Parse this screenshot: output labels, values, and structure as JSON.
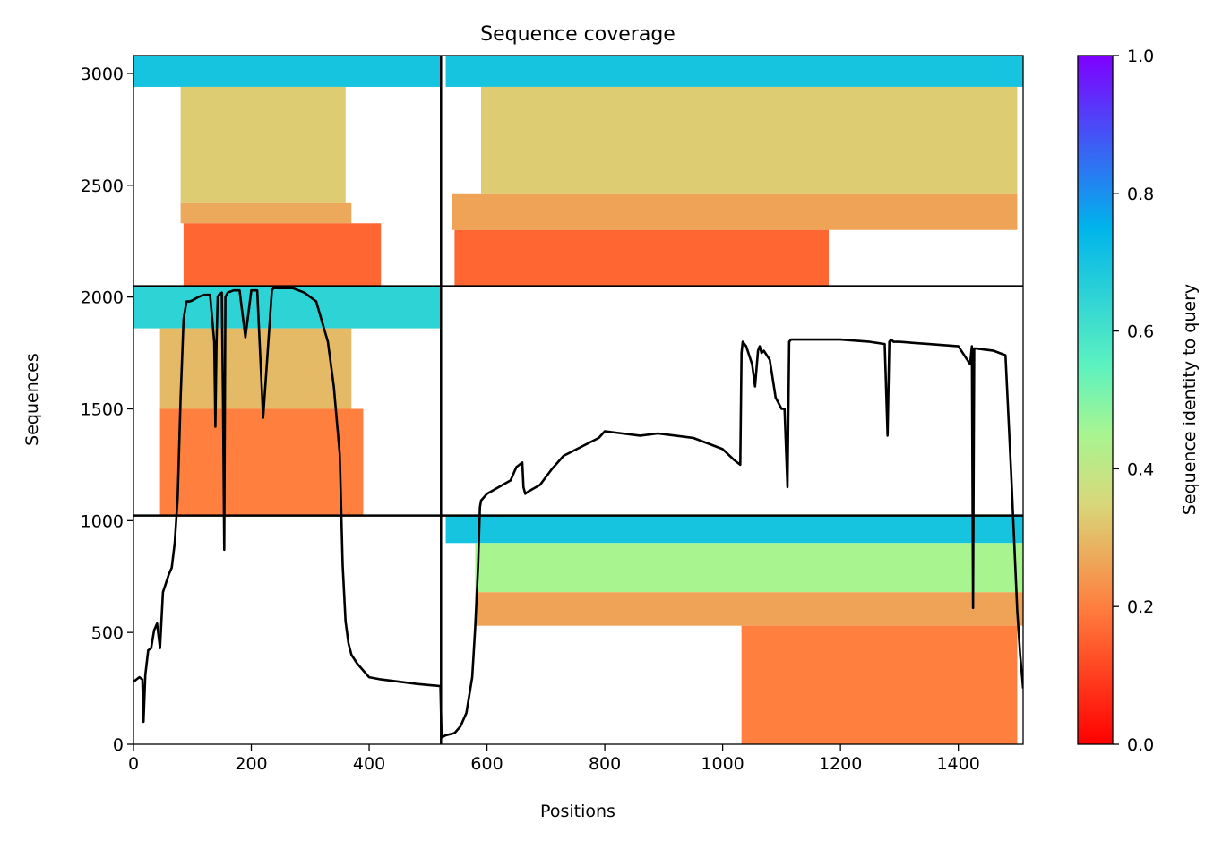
{
  "chart_data": {
    "type": "heatmap",
    "title": "Sequence coverage",
    "xlabel": "Positions",
    "ylabel": "Sequences",
    "xlim": [
      0,
      1510
    ],
    "ylim": [
      0,
      3080
    ],
    "xticks": [
      0,
      200,
      400,
      600,
      800,
      1000,
      1200,
      1400
    ],
    "xtick_labels": [
      "0",
      "200",
      "400",
      "600",
      "800",
      "1000",
      "1200",
      "1400"
    ],
    "yticks": [
      0,
      500,
      1000,
      1500,
      2000,
      2500,
      3000
    ],
    "ytick_labels": [
      "0",
      "500",
      "1000",
      "1500",
      "2000",
      "2500",
      "3000"
    ],
    "colorbar": {
      "label": "Sequence identity to query",
      "range": [
        0,
        1
      ],
      "ticks": [
        0,
        0.2,
        0.4,
        0.6,
        0.8,
        1.0
      ],
      "tick_labels": [
        "0.0",
        "0.2",
        "0.4",
        "0.6",
        "0.8",
        "1.0"
      ],
      "colormap": "rainbow_r",
      "colors": [
        "#ff0000",
        "#ff7f3f",
        "#d8d87a",
        "#5cf2c0",
        "#00b4eb",
        "#7f00ff"
      ]
    },
    "chain_boundaries": {
      "x": [
        522
      ],
      "y": [
        1023,
        2048
      ]
    },
    "coverage_blocks": [
      {
        "x": [
          0,
          522
        ],
        "y": [
          2048,
          3080
        ],
        "rows": [
          {
            "y": [
              2940,
              3080
            ],
            "x": [
              0,
              522
            ],
            "identity": 0.7
          },
          {
            "y": [
              2420,
              2940
            ],
            "x": [
              80,
              360
            ],
            "identity": 0.33
          },
          {
            "y": [
              2330,
              2420
            ],
            "x": [
              80,
              370
            ],
            "identity": 0.27
          },
          {
            "y": [
              2048,
              2330
            ],
            "x": [
              85,
              420
            ],
            "identity": 0.16
          }
        ]
      },
      {
        "x": [
          522,
          1510
        ],
        "y": [
          2048,
          3080
        ],
        "rows": [
          {
            "y": [
              2940,
              3080
            ],
            "x": [
              530,
              1510
            ],
            "identity": 0.7
          },
          {
            "y": [
              2460,
              2940
            ],
            "x": [
              590,
              1500
            ],
            "identity": 0.33
          },
          {
            "y": [
              2300,
              2460
            ],
            "x": [
              540,
              1500
            ],
            "identity": 0.26
          },
          {
            "y": [
              2048,
              2300
            ],
            "x": [
              545,
              1180
            ],
            "identity": 0.16
          }
        ]
      },
      {
        "x": [
          0,
          522
        ],
        "y": [
          1023,
          2048
        ],
        "rows": [
          {
            "y": [
              1860,
              2048
            ],
            "x": [
              0,
              522
            ],
            "identity": 0.65
          },
          {
            "y": [
              1500,
              1860
            ],
            "x": [
              45,
              370
            ],
            "identity": 0.3
          },
          {
            "y": [
              1023,
              1500
            ],
            "x": [
              45,
              390
            ],
            "identity": 0.2
          }
        ]
      },
      {
        "x": [
          522,
          1510
        ],
        "y": [
          0,
          1023
        ],
        "rows": [
          {
            "y": [
              900,
              1023
            ],
            "x": [
              530,
              1510
            ],
            "identity": 0.7
          },
          {
            "y": [
              680,
              900
            ],
            "x": [
              580,
              1510
            ],
            "identity": 0.45
          },
          {
            "y": [
              530,
              680
            ],
            "x": [
              580,
              1510
            ],
            "identity": 0.26
          },
          {
            "y": [
              0,
              530
            ],
            "x": [
              1032,
              1500
            ],
            "identity": 0.2
          }
        ]
      }
    ],
    "series": [
      {
        "type": "line",
        "color": "#000000",
        "x": [
          0,
          10,
          15,
          17,
          20,
          25,
          30,
          35,
          40,
          45,
          50,
          55,
          60,
          65,
          70,
          75,
          80,
          85,
          90,
          95,
          100,
          110,
          120,
          130,
          137,
          139,
          141,
          143,
          145,
          150,
          152,
          154,
          156,
          160,
          170,
          180,
          190,
          200,
          203,
          206,
          210,
          220,
          235,
          238,
          241,
          244,
          250,
          270,
          290,
          310,
          330,
          340,
          350,
          355,
          360,
          365,
          370,
          380,
          400,
          420,
          450,
          480,
          500,
          521,
          523,
          530,
          545,
          555,
          565,
          575,
          580,
          585,
          588,
          590,
          600,
          620,
          640,
          650,
          660,
          662,
          665,
          670,
          690,
          710,
          730,
          760,
          790,
          800,
          830,
          860,
          890,
          920,
          950,
          980,
          1000,
          1020,
          1030,
          1032,
          1034,
          1040,
          1050,
          1055,
          1060,
          1063,
          1066,
          1070,
          1075,
          1080,
          1090,
          1100,
          1105,
          1110,
          1113,
          1116,
          1120,
          1150,
          1200,
          1250,
          1275,
          1280,
          1283,
          1286,
          1290,
          1300,
          1350,
          1400,
          1420,
          1423,
          1425,
          1427,
          1430,
          1460,
          1480,
          1490,
          1500,
          1505,
          1510
        ],
        "y": [
          280,
          300,
          290,
          100,
          310,
          420,
          430,
          510,
          540,
          430,
          680,
          720,
          760,
          790,
          900,
          1100,
          1550,
          1900,
          1980,
          1980,
          1985,
          2000,
          2010,
          2010,
          1800,
          1420,
          1800,
          2000,
          2010,
          2020,
          1500,
          870,
          2000,
          2020,
          2030,
          2030,
          1820,
          2030,
          2030,
          2030,
          2030,
          1460,
          2030,
          2040,
          2040,
          2040,
          2040,
          2040,
          2020,
          1980,
          1800,
          1600,
          1300,
          800,
          550,
          450,
          400,
          360,
          300,
          290,
          280,
          270,
          265,
          260,
          30,
          40,
          50,
          80,
          140,
          300,
          520,
          800,
          1060,
          1090,
          1120,
          1150,
          1180,
          1240,
          1260,
          1150,
          1120,
          1130,
          1160,
          1230,
          1290,
          1330,
          1370,
          1400,
          1390,
          1380,
          1390,
          1380,
          1370,
          1340,
          1320,
          1270,
          1250,
          1750,
          1800,
          1780,
          1700,
          1600,
          1760,
          1780,
          1750,
          1760,
          1740,
          1720,
          1550,
          1500,
          1500,
          1150,
          1800,
          1810,
          1810,
          1810,
          1810,
          1800,
          1790,
          1380,
          1800,
          1810,
          1800,
          1800,
          1790,
          1780,
          1700,
          1780,
          610,
          1770,
          1770,
          1760,
          1740,
          1200,
          600,
          400,
          250
        ]
      }
    ]
  }
}
